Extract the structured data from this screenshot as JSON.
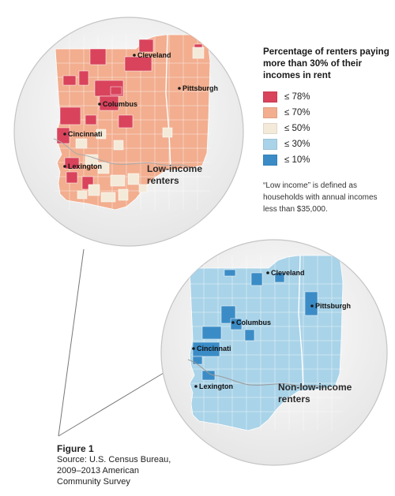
{
  "legend": {
    "title": "Percentage of renters paying more than 30% of their incomes in rent",
    "items": [
      {
        "label": "≤ 78%",
        "color": "#d9435c"
      },
      {
        "label": "≤ 70%",
        "color": "#f2ae8f"
      },
      {
        "label": "≤ 50%",
        "color": "#f4ead9"
      },
      {
        "label": "≤ 30%",
        "color": "#a9d3e8"
      },
      {
        "label": "≤ 10%",
        "color": "#3b8cc6"
      }
    ]
  },
  "note": "“Low income” is defined as households with annual incomes less than $35,000.",
  "maps": {
    "low_income": {
      "label_line1": "Low-income",
      "label_line2": "renters",
      "base_color": "#f2ae8f",
      "cities": [
        "Cleveland",
        "Pittsburgh",
        "Columbus",
        "Cincinnati",
        "Lexington"
      ]
    },
    "non_low_income": {
      "label_line1": "Non-low-income",
      "label_line2": "renters",
      "base_color": "#a9d3e8",
      "cities": [
        "Cleveland",
        "Pittsburgh",
        "Columbus",
        "Cincinnati",
        "Lexington"
      ]
    }
  },
  "caption": {
    "title": "Figure 1",
    "source": "Source: U.S. Census Bureau, 2009–2013 American Community Survey"
  }
}
